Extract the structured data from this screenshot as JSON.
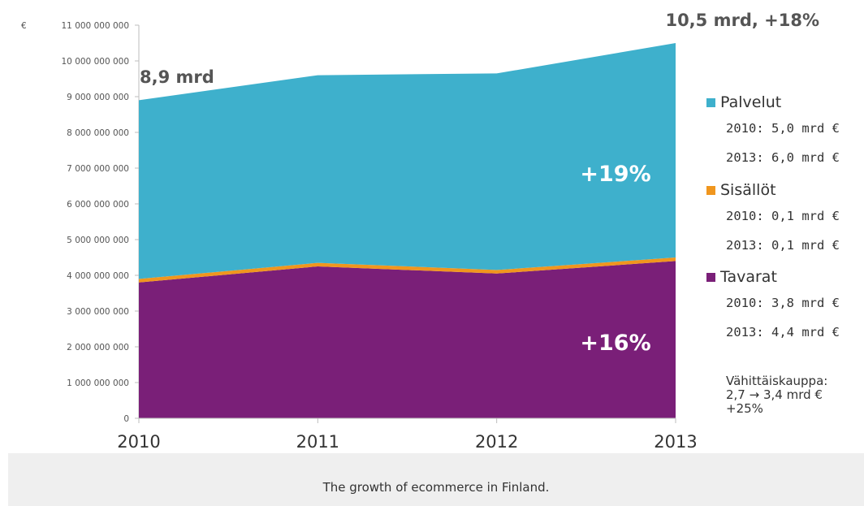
{
  "chart_data": {
    "type": "area",
    "stacked": true,
    "currency_label": "€",
    "x": [
      "2010",
      "2011",
      "2012",
      "2013"
    ],
    "ylim": [
      0,
      11000000000
    ],
    "yticks": [
      0,
      1000000000,
      2000000000,
      3000000000,
      4000000000,
      5000000000,
      6000000000,
      7000000000,
      8000000000,
      9000000000,
      10000000000,
      11000000000
    ],
    "ytick_labels": [
      "0",
      "1 000 000 000",
      "2 000 000 000",
      "3 000 000 000",
      "4 000 000 000",
      "5 000 000 000",
      "6 000 000 000",
      "7 000 000 000",
      "8 000 000 000",
      "9 000 000 000",
      "10 000 000 000",
      "11 000 000 000"
    ],
    "series": [
      {
        "name": "Tavarat",
        "color": "#7a1f78",
        "values": [
          3800000000,
          4250000000,
          4050000000,
          4400000000
        ]
      },
      {
        "name": "Sisällöt",
        "color": "#f0961e",
        "values": [
          100000000,
          100000000,
          100000000,
          100000000
        ]
      },
      {
        "name": "Palvelut",
        "color": "#3eb0cc",
        "values": [
          5000000000,
          5250000000,
          5500000000,
          6000000000
        ]
      }
    ],
    "annotations": {
      "start_total": "8,9 mrd",
      "end_total": "10,5 mrd, +18%",
      "palvelut_growth": "+19%",
      "tavarat_growth": "+16%"
    },
    "legend": [
      {
        "name": "Palvelut",
        "color": "#3eb0cc",
        "lines": [
          "2010: 5,0 mrd €",
          "2013: 6,0 mrd €"
        ]
      },
      {
        "name": "Sisällöt",
        "color": "#f0961e",
        "lines": [
          "2010: 0,1 mrd €",
          "2013: 0,1 mrd €"
        ]
      },
      {
        "name": "Tavarat",
        "color": "#7a1f78",
        "lines": [
          "2010: 3,8 mrd €",
          "2013: 4,4 mrd €"
        ]
      }
    ],
    "retail_note": [
      "Vähittäiskauppa:",
      "2,7 → 3,4 mrd €",
      "+25%"
    ],
    "legend_placement": "right",
    "grid": false
  },
  "caption": "The growth of ecommerce in Finland."
}
